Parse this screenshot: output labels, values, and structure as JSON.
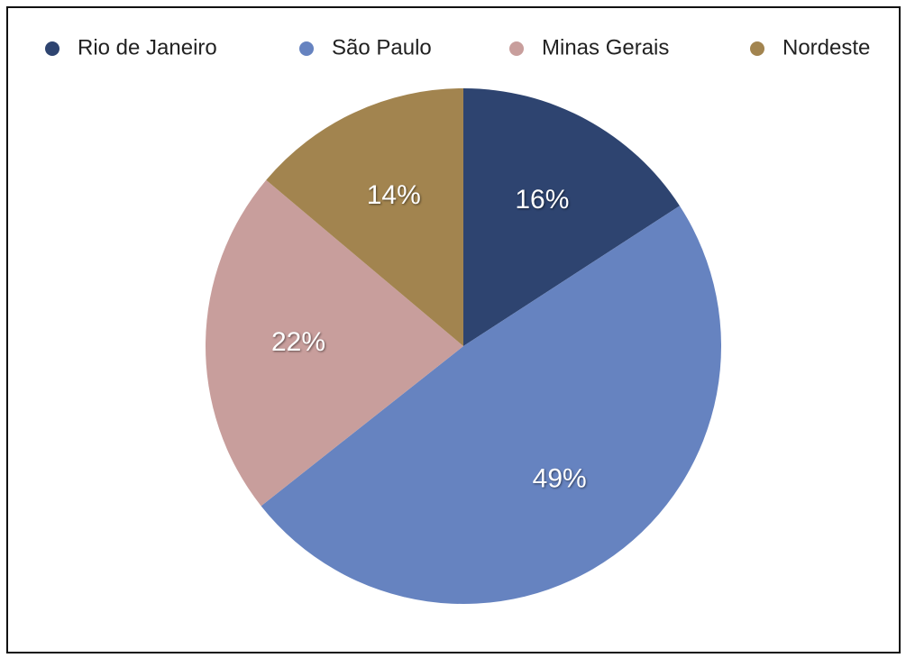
{
  "chart_data": {
    "type": "pie",
    "categories": [
      "Rio de Janeiro",
      "São Paulo",
      "Minas Gerais",
      "Nordeste"
    ],
    "values": [
      16,
      49,
      22,
      14
    ],
    "value_labels": [
      "16%",
      "49%",
      "22%",
      "14%"
    ],
    "colors": [
      "#2e4470",
      "#6683c0",
      "#c89e9c",
      "#a2844f"
    ],
    "legend": "top"
  }
}
